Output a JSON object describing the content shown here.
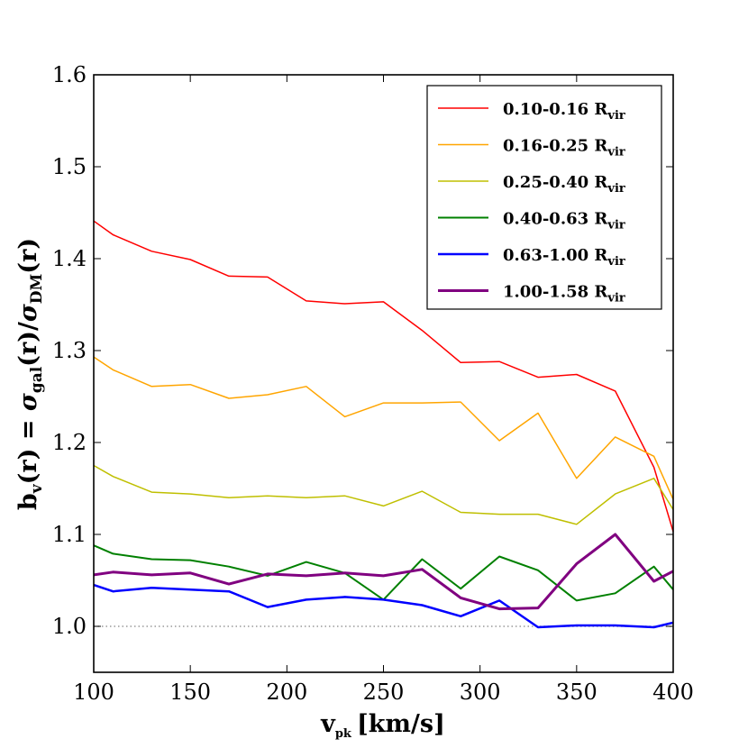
{
  "chart_data": {
    "type": "line",
    "xlabel_main": "v",
    "xlabel_sub": "pk",
    "xlabel_unit": "[km/s]",
    "ylabel_prefix": "b",
    "ylabel_prefix_sub": "v",
    "ylabel_mid": "(r) = ",
    "ylabel_sigma": "σ",
    "ylabel_gal": "gal",
    "ylabel_mid2": "(r)/",
    "ylabel_dm": "DM",
    "ylabel_end": "(r)",
    "xlim": [
      100,
      400
    ],
    "ylim": [
      0.95,
      1.6
    ],
    "xticks": [
      "100",
      "150",
      "200",
      "250",
      "300",
      "350",
      "400"
    ],
    "yticks": [
      "1.0",
      "1.1",
      "1.2",
      "1.3",
      "1.4",
      "1.5",
      "1.6"
    ],
    "reference_line_y": 1.0,
    "x": [
      100,
      110,
      130,
      150,
      170,
      190,
      210,
      230,
      250,
      270,
      290,
      310,
      330,
      350,
      370,
      390,
      400
    ],
    "series": [
      {
        "name": "0.10-0.16",
        "sub": "vir",
        "color": "#ff0000",
        "width": 1.5,
        "values": [
          1.441,
          1.426,
          1.408,
          1.399,
          1.381,
          1.38,
          1.354,
          1.351,
          1.353,
          1.322,
          1.287,
          1.288,
          1.271,
          1.274,
          1.256,
          1.173,
          1.103
        ]
      },
      {
        "name": "0.16-0.25",
        "sub": "vir",
        "color": "#ffa500",
        "width": 1.5,
        "values": [
          1.293,
          1.279,
          1.261,
          1.263,
          1.248,
          1.252,
          1.261,
          1.228,
          1.243,
          1.243,
          1.244,
          1.202,
          1.232,
          1.161,
          1.206,
          1.185,
          1.138
        ]
      },
      {
        "name": "0.25-0.40",
        "sub": "vir",
        "color": "#bfbf00",
        "width": 1.5,
        "values": [
          1.175,
          1.163,
          1.146,
          1.144,
          1.14,
          1.142,
          1.14,
          1.142,
          1.131,
          1.147,
          1.124,
          1.122,
          1.122,
          1.111,
          1.144,
          1.161,
          1.127
        ]
      },
      {
        "name": "0.40-0.63",
        "sub": "vir",
        "color": "#008000",
        "width": 2,
        "values": [
          1.088,
          1.079,
          1.073,
          1.072,
          1.065,
          1.055,
          1.07,
          1.058,
          1.029,
          1.073,
          1.041,
          1.076,
          1.061,
          1.028,
          1.036,
          1.065,
          1.04
        ]
      },
      {
        "name": "0.63-1.00",
        "sub": "vir",
        "color": "#0000ff",
        "width": 2.5,
        "values": [
          1.045,
          1.038,
          1.042,
          1.04,
          1.038,
          1.021,
          1.029,
          1.032,
          1.029,
          1.023,
          1.011,
          1.028,
          0.999,
          1.001,
          1.001,
          0.999,
          1.004
        ]
      },
      {
        "name": "1.00-1.58",
        "sub": "vir",
        "color": "#800080",
        "width": 3,
        "values": [
          1.056,
          1.059,
          1.056,
          1.058,
          1.046,
          1.057,
          1.055,
          1.058,
          1.055,
          1.062,
          1.031,
          1.019,
          1.02,
          1.068,
          1.1,
          1.049,
          1.06
        ]
      }
    ],
    "legend_suffix": " R",
    "legend_position": "top-right"
  }
}
